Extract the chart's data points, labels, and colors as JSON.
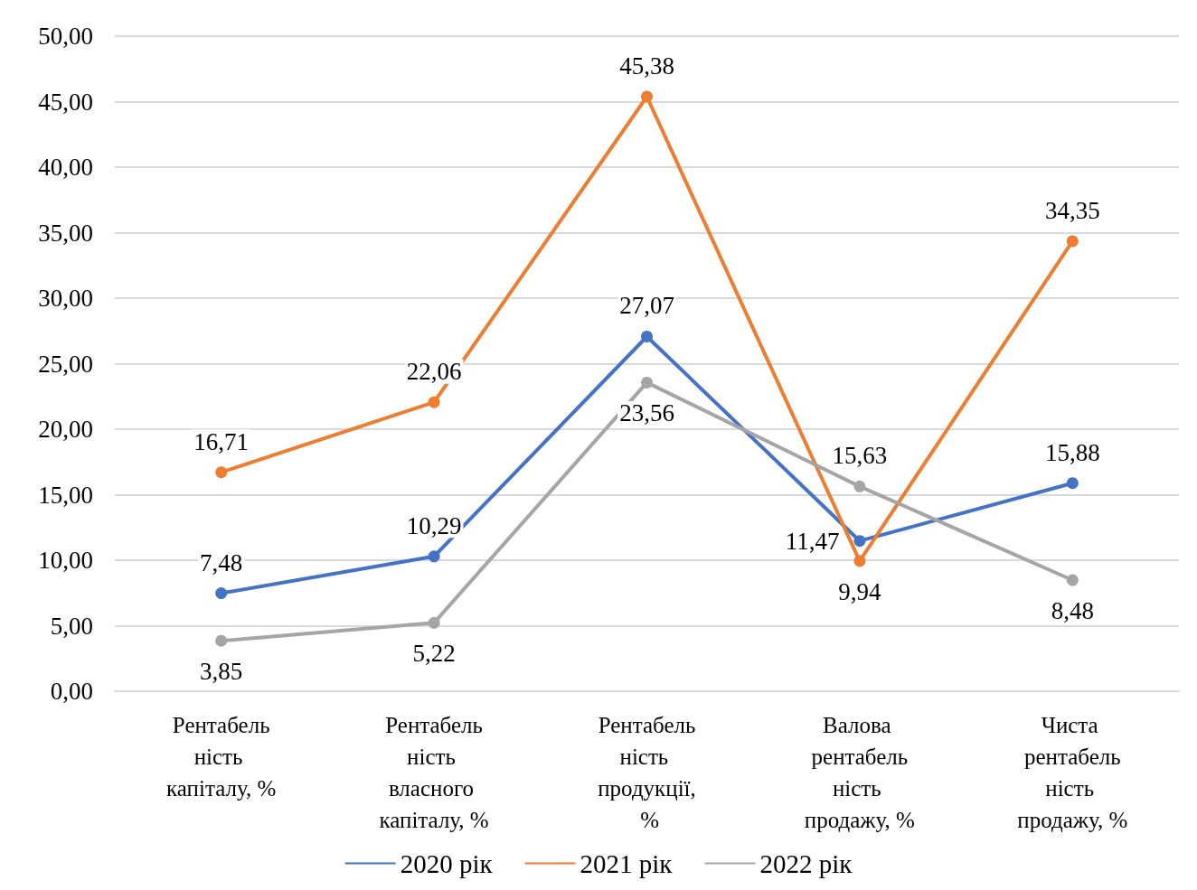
{
  "chart_data": {
    "type": "line",
    "categories": [
      "Рентабельність капіталу, %",
      "Рентабельність власного капіталу, %",
      "Рентабельність продукції, %",
      "Валова рентабельність продажу, %",
      "Чиста рентабельність продажу, %"
    ],
    "series": [
      {
        "name": "2020 рік",
        "color": "#4472c4",
        "values": [
          7.48,
          10.29,
          27.07,
          11.47,
          15.88
        ],
        "value_labels": [
          "7,48",
          "10,29",
          "27,07",
          "11,47",
          "15,88"
        ]
      },
      {
        "name": "2021 рік",
        "color": "#ed7d31",
        "values": [
          16.71,
          22.06,
          45.38,
          9.94,
          34.35
        ],
        "value_labels": [
          "16,71",
          "22,06",
          "45,38",
          "9,94",
          "34,35"
        ]
      },
      {
        "name": "2022 рік",
        "color": "#a5a5a5",
        "values": [
          3.85,
          5.22,
          23.56,
          15.63,
          8.48
        ],
        "value_labels": [
          "3,85",
          "5,22",
          "23,56",
          "15,63",
          "8,48"
        ]
      }
    ],
    "ylim": [
      0,
      50
    ],
    "yticks": [
      {
        "value": 0,
        "label": "0,00"
      },
      {
        "value": 5,
        "label": "5,00"
      },
      {
        "value": 10,
        "label": "10,00"
      },
      {
        "value": 15,
        "label": "15,00"
      },
      {
        "value": 20,
        "label": "20,00"
      },
      {
        "value": 25,
        "label": "25,00"
      },
      {
        "value": 30,
        "label": "30,00"
      },
      {
        "value": 35,
        "label": "35,00"
      },
      {
        "value": 40,
        "label": "40,00"
      },
      {
        "value": 45,
        "label": "45,00"
      },
      {
        "value": 50,
        "label": "50,00"
      }
    ],
    "grid": "y",
    "legend": "bottom",
    "marker": "circle",
    "line_style": "solid"
  }
}
